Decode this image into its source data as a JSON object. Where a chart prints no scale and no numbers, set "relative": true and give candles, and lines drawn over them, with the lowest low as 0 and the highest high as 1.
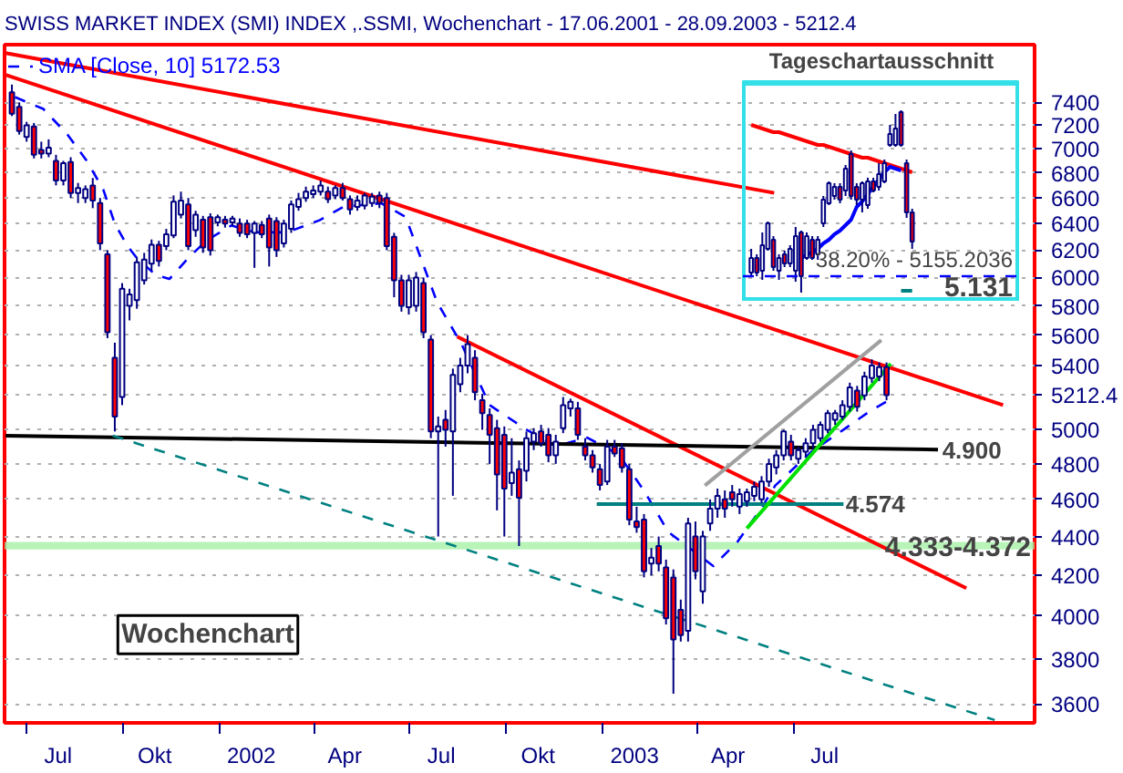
{
  "chart_data": [
    {
      "type": "candlestick",
      "title": "SWISS MARKET INDEX (SMI) INDEX ,.SSMI, Wochenchart - 17.06.2001 - 28.09.2003 - 5212.4",
      "x": [
        "2001-06-17",
        "2001-06-24",
        "2001-07-01",
        "2001-07-08",
        "2001-07-15",
        "2001-07-22",
        "2001-07-29",
        "2001-08-05",
        "2001-08-12",
        "2001-08-19",
        "2001-08-26",
        "2001-09-02",
        "2001-09-09",
        "2001-09-16",
        "2001-09-23",
        "2001-09-30",
        "2001-10-07",
        "2001-10-14",
        "2001-10-21",
        "2001-10-28",
        "2001-11-04",
        "2001-11-11",
        "2001-11-18",
        "2001-11-25",
        "2001-12-02",
        "2001-12-09",
        "2001-12-16",
        "2001-12-23",
        "2001-12-30",
        "2002-01-06",
        "2002-01-13",
        "2002-01-20",
        "2002-01-27",
        "2002-02-03",
        "2002-02-10",
        "2002-02-17",
        "2002-02-24",
        "2002-03-03",
        "2002-03-10",
        "2002-03-17",
        "2002-03-24",
        "2002-03-31",
        "2002-04-07",
        "2002-04-14",
        "2002-04-21",
        "2002-04-28",
        "2002-05-05",
        "2002-05-12",
        "2002-05-19",
        "2002-05-26",
        "2002-06-02",
        "2002-06-09",
        "2002-06-16",
        "2002-06-23",
        "2002-06-30",
        "2002-07-07",
        "2002-07-14",
        "2002-07-21",
        "2002-07-28",
        "2002-08-04",
        "2002-08-11",
        "2002-08-18",
        "2002-08-25",
        "2002-09-01",
        "2002-09-08",
        "2002-09-15",
        "2002-09-22",
        "2002-09-29",
        "2002-10-06",
        "2002-10-13",
        "2002-10-20",
        "2002-10-27",
        "2002-11-03",
        "2002-11-10",
        "2002-11-17",
        "2002-11-24",
        "2002-12-01",
        "2002-12-08",
        "2002-12-15",
        "2002-12-22",
        "2002-12-29",
        "2003-01-05",
        "2003-01-12",
        "2003-01-19",
        "2003-01-26",
        "2003-02-02",
        "2003-02-09",
        "2003-02-16",
        "2003-02-23",
        "2003-03-02",
        "2003-03-09",
        "2003-03-16",
        "2003-03-23",
        "2003-03-30",
        "2003-04-06",
        "2003-04-13",
        "2003-04-20",
        "2003-04-27",
        "2003-05-04",
        "2003-05-11",
        "2003-05-18",
        "2003-05-25",
        "2003-06-01",
        "2003-06-08",
        "2003-06-15",
        "2003-06-22",
        "2003-06-29",
        "2003-07-06",
        "2003-07-13",
        "2003-07-20",
        "2003-07-27",
        "2003-08-03",
        "2003-08-10",
        "2003-08-17",
        "2003-08-24",
        "2003-08-31",
        "2003-09-07",
        "2003-09-14",
        "2003-09-21",
        "2003-09-28"
      ],
      "ohlc": [
        [
          7490,
          7560,
          7280,
          7300
        ],
        [
          7360,
          7400,
          7120,
          7150
        ],
        [
          7100,
          7230,
          7060,
          7200
        ],
        [
          7190,
          7220,
          6920,
          6950
        ],
        [
          6990,
          7060,
          6920,
          6960
        ],
        [
          6960,
          7080,
          6930,
          7010
        ],
        [
          6900,
          6950,
          6700,
          6740
        ],
        [
          6740,
          6900,
          6700,
          6880
        ],
        [
          6890,
          6930,
          6600,
          6640
        ],
        [
          6640,
          6720,
          6560,
          6680
        ],
        [
          6600,
          6700,
          6560,
          6670
        ],
        [
          6700,
          6760,
          6520,
          6580
        ],
        [
          6560,
          6600,
          6200,
          6250
        ],
        [
          6170,
          6200,
          5580,
          5620
        ],
        [
          5450,
          5550,
          4990,
          5080
        ],
        [
          5200,
          5960,
          5150,
          5920
        ],
        [
          5800,
          5920,
          5700,
          5880
        ],
        [
          5840,
          6150,
          5780,
          6110
        ],
        [
          5980,
          6180,
          5950,
          6130
        ],
        [
          6100,
          6280,
          6050,
          6240
        ],
        [
          6240,
          6270,
          6080,
          6120
        ],
        [
          6230,
          6360,
          6200,
          6320
        ],
        [
          6310,
          6620,
          6290,
          6570
        ],
        [
          6470,
          6650,
          6440,
          6580
        ],
        [
          6550,
          6600,
          6200,
          6230
        ],
        [
          6350,
          6500,
          6300,
          6470
        ],
        [
          6430,
          6460,
          6180,
          6220
        ],
        [
          6450,
          6480,
          6160,
          6200
        ],
        [
          6410,
          6470,
          6380,
          6450
        ],
        [
          6430,
          6460,
          6370,
          6400
        ],
        [
          6410,
          6460,
          6380,
          6440
        ],
        [
          6400,
          6440,
          6300,
          6330
        ],
        [
          6400,
          6430,
          6290,
          6320
        ],
        [
          6330,
          6420,
          6070,
          6400
        ],
        [
          6390,
          6420,
          6290,
          6320
        ],
        [
          6440,
          6470,
          6080,
          6220
        ],
        [
          6420,
          6450,
          6150,
          6200
        ],
        [
          6250,
          6430,
          6220,
          6400
        ],
        [
          6360,
          6580,
          6330,
          6550
        ],
        [
          6530,
          6640,
          6500,
          6590
        ],
        [
          6600,
          6690,
          6570,
          6650
        ],
        [
          6630,
          6700,
          6600,
          6660
        ],
        [
          6650,
          6740,
          6620,
          6700
        ],
        [
          6650,
          6690,
          6560,
          6590
        ],
        [
          6620,
          6700,
          6590,
          6680
        ],
        [
          6680,
          6720,
          6580,
          6600
        ],
        [
          6590,
          6620,
          6470,
          6510
        ],
        [
          6530,
          6620,
          6500,
          6580
        ],
        [
          6540,
          6640,
          6510,
          6620
        ],
        [
          6560,
          6640,
          6530,
          6610
        ],
        [
          6620,
          6650,
          6520,
          6560
        ],
        [
          6600,
          6640,
          6200,
          6230
        ],
        [
          6300,
          6330,
          5860,
          5980
        ],
        [
          5980,
          6020,
          5760,
          5800
        ],
        [
          5790,
          6020,
          5740,
          5980
        ],
        [
          5800,
          6040,
          5760,
          6000
        ],
        [
          5960,
          6000,
          5580,
          5620
        ],
        [
          5570,
          5600,
          4950,
          4990
        ],
        [
          4990,
          5080,
          4400,
          5020
        ],
        [
          5060,
          5120,
          4900,
          5000
        ],
        [
          4990,
          5380,
          4620,
          5340
        ],
        [
          5280,
          5450,
          5230,
          5400
        ],
        [
          5400,
          5600,
          5350,
          5540
        ],
        [
          5450,
          5500,
          5180,
          5230
        ],
        [
          5180,
          5220,
          5000,
          5100
        ],
        [
          5090,
          5130,
          4800,
          4970
        ],
        [
          5010,
          5060,
          4540,
          4740
        ],
        [
          4970,
          5020,
          4400,
          4660
        ],
        [
          4690,
          4950,
          4620,
          4750
        ],
        [
          4770,
          4820,
          4350,
          4610
        ],
        [
          4760,
          4990,
          4700,
          4950
        ],
        [
          4930,
          5010,
          4880,
          4980
        ],
        [
          4990,
          5030,
          4900,
          4920
        ],
        [
          4970,
          5010,
          4810,
          4850
        ],
        [
          4850,
          4970,
          4800,
          4930
        ],
        [
          5010,
          5200,
          4980,
          5150
        ],
        [
          5130,
          5190,
          5080,
          5170
        ],
        [
          5130,
          5170,
          4940,
          4970
        ],
        [
          4900,
          4950,
          4820,
          4850
        ],
        [
          4850,
          4880,
          4750,
          4780
        ],
        [
          4770,
          4800,
          4650,
          4680
        ],
        [
          4700,
          4940,
          4680,
          4900
        ],
        [
          4900,
          4940,
          4840,
          4860
        ],
        [
          4890,
          4920,
          4750,
          4780
        ],
        [
          4770,
          4800,
          4460,
          4490
        ],
        [
          4480,
          4560,
          4420,
          4450
        ],
        [
          4490,
          4520,
          4190,
          4220
        ],
        [
          4260,
          4340,
          4200,
          4290
        ],
        [
          4350,
          4400,
          4220,
          4260
        ],
        [
          4240,
          4280,
          3960,
          3990
        ],
        [
          4190,
          4230,
          3645,
          3890
        ],
        [
          4030,
          4080,
          3880,
          3910
        ],
        [
          3930,
          4500,
          3880,
          4470
        ],
        [
          4400,
          4480,
          4180,
          4220
        ],
        [
          4120,
          4430,
          4060,
          4400
        ],
        [
          4470,
          4600,
          4430,
          4550
        ],
        [
          4550,
          4660,
          4500,
          4620
        ],
        [
          4600,
          4650,
          4500,
          4550
        ],
        [
          4640,
          4680,
          4560,
          4600
        ],
        [
          4560,
          4660,
          4520,
          4630
        ],
        [
          4590,
          4660,
          4560,
          4640
        ],
        [
          4620,
          4700,
          4590,
          4670
        ],
        [
          4600,
          4730,
          4580,
          4700
        ],
        [
          4700,
          4830,
          4670,
          4800
        ],
        [
          4780,
          4880,
          4740,
          4850
        ],
        [
          4850,
          5000,
          4820,
          4990
        ],
        [
          4930,
          4970,
          4820,
          4850
        ],
        [
          4830,
          4900,
          4800,
          4880
        ],
        [
          4870,
          4950,
          4840,
          4920
        ],
        [
          4920,
          5030,
          4890,
          5000
        ],
        [
          4950,
          5050,
          4930,
          5030
        ],
        [
          5000,
          5120,
          4980,
          5100
        ],
        [
          5060,
          5120,
          5030,
          5100
        ],
        [
          5080,
          5180,
          5060,
          5150
        ],
        [
          5140,
          5290,
          5110,
          5260
        ],
        [
          5240,
          5270,
          5110,
          5140
        ],
        [
          5210,
          5360,
          5180,
          5330
        ],
        [
          5320,
          5440,
          5290,
          5400
        ],
        [
          5330,
          5420,
          5300,
          5390
        ],
        [
          5390,
          5420,
          5180,
          5212
        ]
      ],
      "color": "#000080",
      "colors": [
        "#ff0000",
        "#ff0000",
        "#ffffff",
        "#ff0000",
        "#ff0000",
        "#ffffff",
        "#ff0000",
        "#ffffff",
        "#ff0000",
        "#ffffff",
        "#ffffff",
        "#ff0000",
        "#ff0000",
        "#ff0000",
        "#ff0000",
        "#ffffff",
        "#ffffff",
        "#ffffff",
        "#ffffff",
        "#ffffff",
        "#ff0000",
        "#ffffff",
        "#ffffff",
        "#ffffff",
        "#ff0000",
        "#ffffff",
        "#ff0000",
        "#ff0000",
        "#ffffff",
        "#ff0000",
        "#ffffff",
        "#ff0000",
        "#ff0000",
        "#ffffff",
        "#ff0000",
        "#ff0000",
        "#ff0000",
        "#ffffff",
        "#ffffff",
        "#ffffff",
        "#ffffff",
        "#ffffff",
        "#ffffff",
        "#ff0000",
        "#ffffff",
        "#ff0000",
        "#ff0000",
        "#ffffff",
        "#ffffff",
        "#ffffff",
        "#ff0000",
        "#ff0000",
        "#ff0000",
        "#ff0000",
        "#ffffff",
        "#ffffff",
        "#ff0000",
        "#ff0000",
        "#ffffff",
        "#ff0000",
        "#ffffff",
        "#ffffff",
        "#ffffff",
        "#ff0000",
        "#ff0000",
        "#ff0000",
        "#ff0000",
        "#ff0000",
        "#ffffff",
        "#ff0000",
        "#ffffff",
        "#ffffff",
        "#ff0000",
        "#ff0000",
        "#ffffff",
        "#ffffff",
        "#ffffff",
        "#ff0000",
        "#ff0000",
        "#ff0000",
        "#ff0000",
        "#ffffff",
        "#ff0000",
        "#ff0000",
        "#ff0000",
        "#ff0000",
        "#ff0000",
        "#ffffff",
        "#ff0000",
        "#ff0000",
        "#ff0000",
        "#ff0000",
        "#ffffff",
        "#ff0000",
        "#ffffff",
        "#ffffff",
        "#ffffff",
        "#ff0000",
        "#ff0000",
        "#ffffff",
        "#ffffff",
        "#ffffff",
        "#ffffff",
        "#ffffff",
        "#ffffff",
        "#ffffff",
        "#ff0000",
        "#ffffff",
        "#ffffff",
        "#ffffff",
        "#ffffff",
        "#ffffff",
        "#ffffff",
        "#ffffff",
        "#ffffff",
        "#ff0000",
        "#ffffff",
        "#ffffff",
        "#ffffff",
        "#ff0000"
      ],
      "series": [
        {
          "type": "line",
          "name": "SMA [Close, 10] 5172.53",
          "color": "#0000ff",
          "line_style": "dashed",
          "x": [
            "2001-06-20",
            "2001-07-17",
            "2001-08-09",
            "2001-08-27",
            "2001-09-12",
            "2001-09-23",
            "2001-10-05",
            "2001-10-14",
            "2001-11-01",
            "2001-11-14",
            "2001-12-02",
            "2001-12-19",
            "2002-01-12",
            "2002-02-04",
            "2002-03-06",
            "2002-04-06",
            "2002-04-29",
            "2002-06-04",
            "2002-06-27",
            "2002-07-27",
            "2002-08-19",
            "2002-09-15",
            "2002-10-19",
            "2002-11-17",
            "2002-12-17",
            "2003-01-16",
            "2003-02-09",
            "2003-03-04",
            "2003-04-16",
            "2003-05-09",
            "2003-06-01",
            "2003-06-14",
            "2003-07-19",
            "2003-08-19",
            "2003-09-11",
            "2003-09-28"
          ],
          "values": [
            7447,
            7342,
            7119,
            6904,
            6667,
            6400,
            6231,
            6142,
            6018,
            5990,
            6142,
            6270,
            6386,
            6334,
            6334,
            6426,
            6532,
            6558,
            6452,
            5824,
            5544,
            5150,
            5005,
            4903,
            4953,
            4853,
            4649,
            4425,
            4247,
            4372,
            4554,
            4677,
            4873,
            5005,
            5108,
            5172.53
          ]
        },
        {
          "type": "line",
          "color": "#ff0000",
          "x": [
            "2001-06-11",
            "2003-06-13"
          ],
          "values": [
            7850,
            6640
          ]
        },
        {
          "type": "line",
          "color": "#ff0000",
          "x": [
            "2001-06-11",
            "2004-01-17"
          ],
          "values": [
            7649,
            5150
          ]
        },
        {
          "type": "line",
          "color": "#ff0000",
          "x": [
            "2002-08-15",
            "2003-12-13"
          ],
          "values": [
            5590,
            4136
          ]
        },
        {
          "type": "line",
          "color": "#000000",
          "x": [
            "2001-06-11",
            "2003-11-16"
          ],
          "values": [
            4965,
            4883
          ]
        },
        {
          "type": "line",
          "color": "#008080",
          "line_style": "dashed",
          "x": [
            "2001-09-21",
            "2004-01-09"
          ],
          "values": [
            4965,
            3532
          ]
        },
        {
          "type": "line",
          "color": "#008080",
          "x": [
            "2002-12-26",
            "2003-08-18"
          ],
          "values": [
            4574,
            4574
          ]
        },
        {
          "type": "line",
          "color": "#a0a0a0",
          "x": [
            "2003-04-08",
            "2003-09-23"
          ],
          "values": [
            4677,
            5567
          ]
        },
        {
          "type": "line",
          "color": "#00e000",
          "x": [
            "2003-05-18",
            "2003-10-02"
          ],
          "values": [
            4443,
            5411
          ]
        }
      ],
      "bands": [
        {
          "axis": "y",
          "from": 4333,
          "to": 4372,
          "label": "4.333-4.372",
          "color": "#a0f0a0"
        }
      ],
      "annotations": [
        {
          "text": "4.900",
          "x": "2003-11-20",
          "y": 4880
        },
        {
          "text": "4.574",
          "x": "2003-08-20",
          "y": 4574
        },
        "Wochenchart"
      ],
      "log": true,
      "ylim": [
        3520,
        7930
      ],
      "yticks": [
        3600,
        3800,
        4000,
        4200,
        4400,
        4600,
        4800,
        5000,
        {
          "value": 5212.4,
          "label": "5212.4"
        },
        5400,
        5600,
        5800,
        6000,
        6200,
        6400,
        6600,
        6800,
        7000,
        7200,
        7400
      ],
      "xlim": [
        "2001-06-10",
        "2004-02-16"
      ],
      "xticks": [
        {
          "value": "2001-07-01",
          "label": null
        },
        {
          "value": "2001-07-31",
          "label": "Jul"
        },
        {
          "value": "2001-10-01",
          "label": null
        },
        {
          "value": "2001-10-31",
          "label": "Okt"
        },
        {
          "value": "2002-01-01",
          "label": null
        },
        {
          "value": "2002-01-31",
          "label": "2002"
        },
        {
          "value": "2002-04-01",
          "label": null
        },
        {
          "value": "2002-04-30",
          "label": "Apr"
        },
        {
          "value": "2002-07-01",
          "label": null
        },
        {
          "value": "2002-07-31",
          "label": "Jul"
        },
        {
          "value": "2002-10-01",
          "label": null
        },
        {
          "value": "2002-10-31",
          "label": "Okt"
        },
        {
          "value": "2003-01-01",
          "label": null
        },
        {
          "value": "2003-01-31",
          "label": "2003"
        },
        {
          "value": "2003-04-01",
          "label": null
        },
        {
          "value": "2003-04-30",
          "label": "Apr"
        },
        {
          "value": "2003-07-01",
          "label": null
        },
        {
          "value": "2003-07-31",
          "label": "Jul"
        }
      ],
      "grid": "y",
      "legend": "top left"
    },
    {
      "type": "candlestick",
      "title": "Tageschartausschnitt",
      "relative": true,
      "categories": [
        null,
        null,
        null,
        null,
        null,
        null,
        null,
        null,
        null,
        null,
        null,
        null,
        null,
        null,
        null,
        null,
        null,
        null,
        null,
        null,
        null,
        null,
        null,
        null,
        null,
        null,
        null,
        null,
        null,
        null
      ],
      "ohlc": [
        [
          0.11,
          0.24,
          0.09,
          0.19
        ],
        [
          0.19,
          0.21,
          0.09,
          0.11
        ],
        [
          0.12,
          0.33,
          0.07,
          0.26
        ],
        [
          0.24,
          0.39,
          0.23,
          0.38
        ],
        [
          0.29,
          0.31,
          0.12,
          0.14
        ],
        [
          0.12,
          0.21,
          0.07,
          0.19
        ],
        [
          0.21,
          0.23,
          0.14,
          0.16
        ],
        [
          0.16,
          0.26,
          0.14,
          0.24
        ],
        [
          0.12,
          0.36,
          0.06,
          0.31
        ],
        [
          0.33,
          0.34,
          0.0,
          0.09
        ],
        [
          0.19,
          0.33,
          0.18,
          0.31
        ],
        [
          0.29,
          0.31,
          0.18,
          0.19
        ],
        [
          0.21,
          0.31,
          0.18,
          0.29
        ],
        [
          0.38,
          0.53,
          0.36,
          0.51
        ],
        [
          0.49,
          0.61,
          0.48,
          0.6
        ],
        [
          0.53,
          0.6,
          0.51,
          0.58
        ],
        [
          0.58,
          0.6,
          0.49,
          0.51
        ],
        [
          0.56,
          0.7,
          0.53,
          0.68
        ],
        [
          0.76,
          0.78,
          0.51,
          0.53
        ],
        [
          0.58,
          0.6,
          0.48,
          0.51
        ],
        [
          0.51,
          0.61,
          0.44,
          0.6
        ],
        [
          0.48,
          0.63,
          0.46,
          0.61
        ],
        [
          0.61,
          0.63,
          0.55,
          0.56
        ],
        [
          0.58,
          0.71,
          0.56,
          0.65
        ],
        [
          0.61,
          0.73,
          0.6,
          0.71
        ],
        [
          0.81,
          0.92,
          0.8,
          0.87
        ],
        [
          0.81,
          0.98,
          0.8,
          0.9
        ],
        [
          0.99,
          1.0,
          0.8,
          0.81
        ],
        [
          0.71,
          0.73,
          0.41,
          0.44
        ],
        [
          0.44,
          0.46,
          0.24,
          0.28
        ]
      ],
      "color": "#000080",
      "colors": [
        "#ffffff",
        "#ff0000",
        "#ffffff",
        "#ffffff",
        "#ff0000",
        "#ffffff",
        "#ff0000",
        "#ffffff",
        "#ffffff",
        "#ff0000",
        "#ffffff",
        "#ff0000",
        "#ffffff",
        "#ffffff",
        "#ffffff",
        "#ffffff",
        "#ff0000",
        "#ffffff",
        "#ff0000",
        "#ff0000",
        "#ffffff",
        "#ffffff",
        "#ff0000",
        "#ffffff",
        "#ffffff",
        "#ffffff",
        "#ffffff",
        "#ff0000",
        "#ff0000",
        "#ff0000"
      ],
      "series": [
        {
          "type": "line",
          "color": "#ff0000",
          "values": [
            0.92,
            0.91,
            0.9,
            0.89,
            0.88,
            0.88,
            0.87,
            0.86,
            0.85,
            0.84,
            0.83,
            0.82,
            0.81,
            0.81,
            0.8,
            0.79,
            0.78,
            0.77,
            0.76,
            0.75,
            0.74,
            0.74,
            0.73,
            0.72,
            0.71,
            0.7,
            0.69,
            0.68,
            0.67,
            0.66
          ]
        },
        {
          "type": "line",
          "color": "#0000ff",
          "values": [
            null,
            null,
            null,
            null,
            null,
            null,
            null,
            null,
            null,
            0.19,
            0.21,
            0.22,
            0.24,
            0.27,
            0.29,
            0.32,
            0.34,
            0.37,
            0.4,
            0.47,
            0.5,
            0.54,
            0.58,
            0.62,
            0.66,
            0.69,
            0.68,
            0.67,
            null,
            null
          ]
        },
        {
          "type": "line",
          "color": "#008080",
          "values": [
            null,
            null,
            null,
            null,
            null,
            null,
            null,
            null,
            null,
            null,
            null,
            null,
            null,
            null,
            null,
            null,
            null,
            null,
            null,
            null,
            null,
            null,
            null,
            null,
            null,
            null,
            null,
            0.01,
            0.01,
            0.01
          ]
        }
      ],
      "ref_lines": [
        {
          "axis": "y",
          "value": 0.09,
          "color": "#0000ff",
          "line_style": "dashed"
        }
      ],
      "annotations": [
        "5.131",
        "38.20% - 5155.2036"
      ]
    }
  ]
}
